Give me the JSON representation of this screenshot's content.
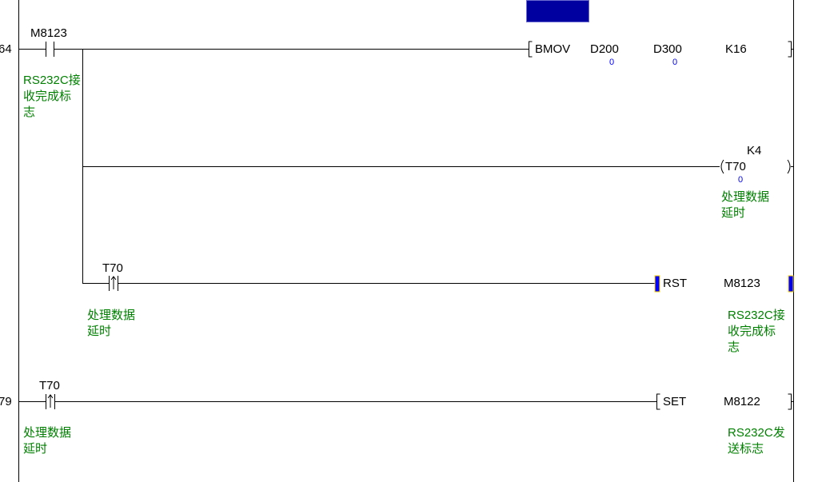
{
  "ladder": {
    "rungs": [
      {
        "step": "64",
        "contact": {
          "device": "M8123",
          "type": "normally-open",
          "comment": "RS232C接\n收完成标\n志"
        },
        "instruction": {
          "op": "BMOV",
          "operands": [
            "D200",
            "D300",
            "K16"
          ],
          "values": [
            "0",
            "0"
          ]
        },
        "coil": {
          "device": "T70",
          "setpoint": "K4",
          "value": "0",
          "comment": "处理数据\n延时"
        },
        "branch": {
          "contact": {
            "device": "T70",
            "type": "rising-edge",
            "comment": "处理数据\n延时"
          },
          "instruction": {
            "op": "RST",
            "operand": "M8123",
            "comment": "RS232C接\n收完成标\n志"
          }
        }
      },
      {
        "step": "79",
        "contact": {
          "device": "T70",
          "type": "rising-edge",
          "comment": "处理数据\n延时"
        },
        "instruction": {
          "op": "SET",
          "operand": "M8122",
          "comment": "RS232C发\n送标志"
        }
      }
    ]
  },
  "colors": {
    "comment": "#008000",
    "monitor_value": "#0000ff",
    "cursor": "#0000a0"
  }
}
